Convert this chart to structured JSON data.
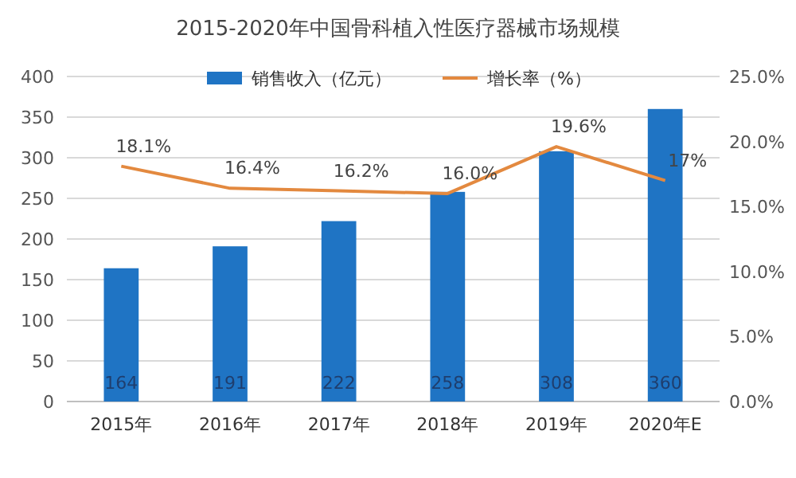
{
  "chart_data": {
    "type": "bar",
    "title": "2015-2020年中国骨科植入性医疗器械市场规模",
    "categories": [
      "2015年",
      "2016年",
      "2017年",
      "2018年",
      "2019年",
      "2020年E"
    ],
    "series": [
      {
        "name": "销售收入（亿元）",
        "color": "#1f74c4",
        "values": [
          164,
          191,
          222,
          258,
          308,
          360
        ],
        "value_labels": [
          "164",
          "191",
          "222",
          "258",
          "308",
          "360"
        ]
      },
      {
        "name": "增长率（%）",
        "type": "line",
        "axis": "y2",
        "color": "#e3893f",
        "marker": "none",
        "values": [
          18.1,
          16.4,
          16.2,
          16.0,
          19.6,
          17
        ],
        "value_labels": [
          "18.1%",
          "16.4%",
          "16.2%",
          "16.0%",
          "19.6%",
          "17%"
        ]
      }
    ],
    "ylim": [
      0,
      400
    ],
    "yticks": [
      0,
      50,
      100,
      150,
      200,
      250,
      300,
      350,
      400
    ],
    "y2lim": [
      0,
      25
    ],
    "y2ticks": [
      {
        "value": 0,
        "label": "0.0%"
      },
      {
        "value": 5,
        "label": "5.0%"
      },
      {
        "value": 10,
        "label": "10.0%"
      },
      {
        "value": 15,
        "label": "15.0%"
      },
      {
        "value": 20,
        "label": "20.0%"
      },
      {
        "value": 25,
        "label": "25.0%"
      }
    ],
    "grid": "y",
    "legend": "top"
  }
}
